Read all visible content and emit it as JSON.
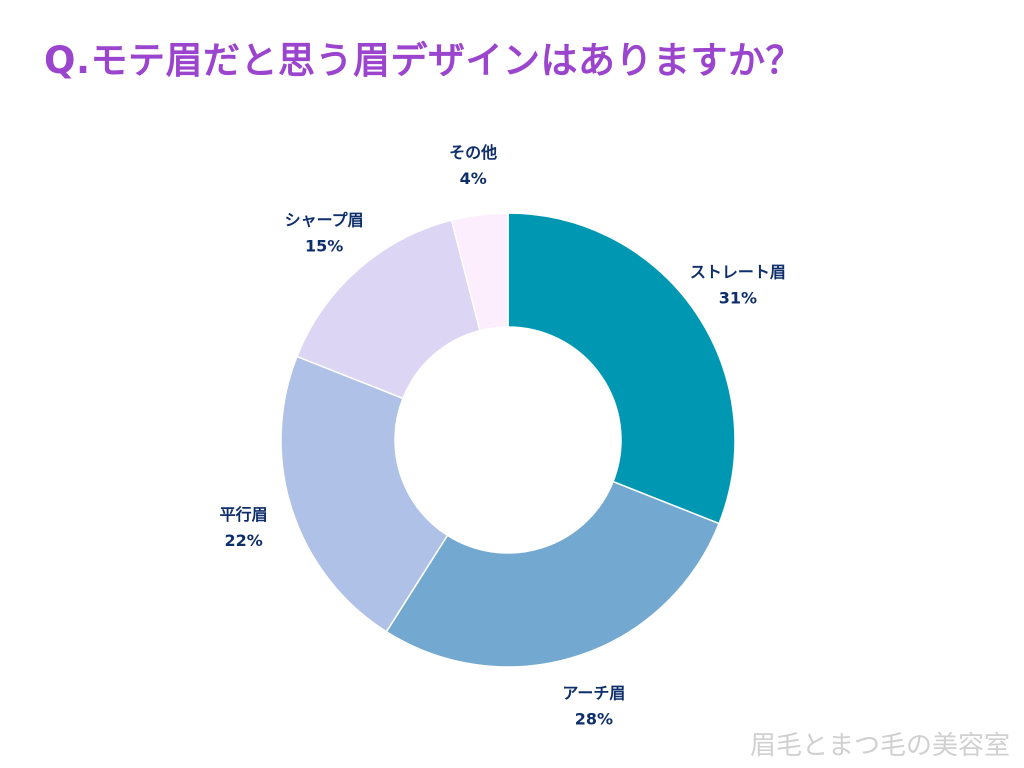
{
  "title": "Q.モテ眉だと思う眉デザインはありますか？",
  "watermark": "眉毛とまつ毛の美容室",
  "chart_data": {
    "type": "pie",
    "style": "donut",
    "slices": [
      {
        "name": "ストレート眉",
        "value": 31,
        "label": "31%",
        "color": "#0097b2"
      },
      {
        "name": "アーチ眉",
        "value": 28,
        "label": "28%",
        "color": "#73a9d1"
      },
      {
        "name": "平行眉",
        "value": 22,
        "label": "22%",
        "color": "#b0c1e8"
      },
      {
        "name": "シャープ眉",
        "value": 15,
        "label": "15%",
        "color": "#dcd5f3"
      },
      {
        "name": "その他",
        "value": 4,
        "label": "4%",
        "color": "#fdeefd"
      }
    ],
    "legend": "none",
    "start_angle": "12 o'clock",
    "direction": "clockwise"
  }
}
